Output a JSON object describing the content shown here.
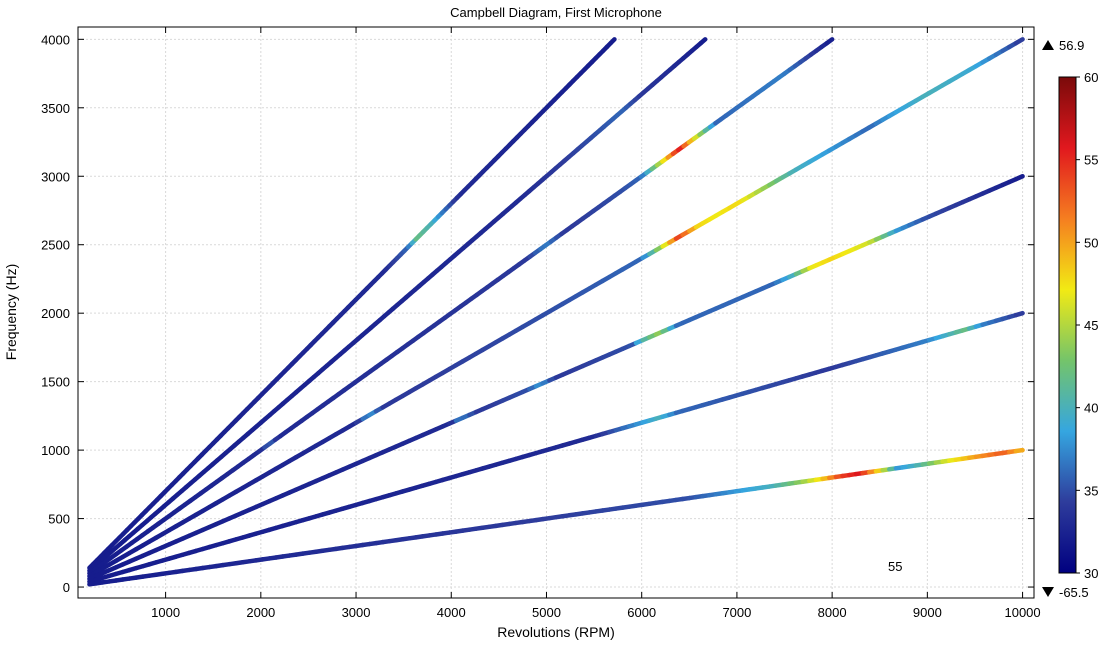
{
  "chart_data": {
    "type": "line",
    "title": "Campbell Diagram, First Microphone",
    "xlabel": "Revolutions (RPM)",
    "ylabel": "Frequency (Hz)",
    "xlim": [
      80,
      10120
    ],
    "ylim": [
      -80,
      4090
    ],
    "xticks": [
      1000,
      2000,
      3000,
      4000,
      5000,
      6000,
      7000,
      8000,
      9000,
      10000
    ],
    "yticks": [
      0,
      500,
      1000,
      1500,
      2000,
      2500,
      3000,
      3500,
      4000
    ],
    "grid": true,
    "color_scale": {
      "min": 30,
      "max": 60,
      "ticks": [
        30,
        35,
        40,
        45,
        50,
        55,
        60
      ],
      "data_max_label": "56.9",
      "data_min_label": "-65.5",
      "colormap": [
        "#000080",
        "#2e3c9c",
        "#35a6e0",
        "#74c46a",
        "#f2ea14",
        "#f57e20",
        "#e1181e",
        "#7a0a0a"
      ]
    },
    "annotation": "55",
    "series": [
      {
        "order": 42,
        "x": [
          200,
          5714
        ],
        "y": [
          140,
          4000
        ],
        "segments": [
          [
            200,
            32
          ],
          [
            3300,
            33
          ],
          [
            3550,
            36
          ],
          [
            3650,
            42
          ],
          [
            3800,
            40
          ],
          [
            3950,
            36
          ],
          [
            4100,
            33
          ],
          [
            5714,
            32
          ]
        ]
      },
      {
        "order": 36,
        "x": [
          200,
          6667
        ],
        "y": [
          120,
          4000
        ],
        "segments": [
          [
            200,
            32
          ],
          [
            4700,
            33
          ],
          [
            5500,
            35
          ],
          [
            5800,
            36
          ],
          [
            6000,
            34
          ],
          [
            6667,
            32
          ]
        ]
      },
      {
        "order": 30,
        "x": [
          200,
          8000
        ],
        "y": [
          100,
          4000
        ],
        "segments": [
          [
            200,
            32
          ],
          [
            2000,
            33
          ],
          [
            2100,
            36
          ],
          [
            2200,
            33
          ],
          [
            4800,
            34
          ],
          [
            5000,
            37
          ],
          [
            5200,
            34
          ],
          [
            5800,
            35
          ],
          [
            6000,
            36
          ],
          [
            6200,
            45
          ],
          [
            6400,
            56
          ],
          [
            6600,
            45
          ],
          [
            6800,
            36
          ],
          [
            7500,
            37
          ],
          [
            8000,
            32
          ]
        ]
      },
      {
        "order": 24,
        "x": [
          200,
          10000
        ],
        "y": [
          80,
          4000
        ],
        "segments": [
          [
            200,
            32
          ],
          [
            3000,
            33
          ],
          [
            3150,
            38
          ],
          [
            3300,
            34
          ],
          [
            5000,
            35
          ],
          [
            6000,
            36
          ],
          [
            6200,
            44
          ],
          [
            6400,
            54
          ],
          [
            6600,
            48
          ],
          [
            6800,
            47
          ],
          [
            7000,
            48
          ],
          [
            7300,
            44
          ],
          [
            7600,
            40
          ],
          [
            8000,
            38
          ],
          [
            8400,
            36
          ],
          [
            8600,
            38
          ],
          [
            9000,
            40
          ],
          [
            9500,
            39
          ],
          [
            10000,
            34
          ]
        ]
      },
      {
        "order": 18,
        "x": [
          200,
          10000
        ],
        "y": [
          60,
          3000
        ],
        "segments": [
          [
            200,
            32
          ],
          [
            4000,
            33
          ],
          [
            4100,
            37
          ],
          [
            4300,
            34
          ],
          [
            4800,
            35
          ],
          [
            4950,
            38
          ],
          [
            5100,
            34
          ],
          [
            5900,
            35
          ],
          [
            6000,
            40
          ],
          [
            6200,
            44
          ],
          [
            6400,
            36
          ],
          [
            7400,
            36
          ],
          [
            7600,
            40
          ],
          [
            7800,
            47
          ],
          [
            8000,
            48
          ],
          [
            8400,
            46
          ],
          [
            8700,
            38
          ],
          [
            9000,
            35
          ],
          [
            10000,
            32
          ]
        ]
      },
      {
        "order": 12,
        "x": [
          200,
          10000
        ],
        "y": [
          40,
          2000
        ],
        "segments": [
          [
            200,
            32
          ],
          [
            5500,
            33
          ],
          [
            5800,
            36
          ],
          [
            6200,
            40
          ],
          [
            6400,
            36
          ],
          [
            8000,
            34
          ],
          [
            9000,
            37
          ],
          [
            9400,
            42
          ],
          [
            9600,
            37
          ],
          [
            10000,
            34
          ]
        ]
      },
      {
        "order": 6,
        "x": [
          200,
          10000
        ],
        "y": [
          20,
          1000
        ],
        "segments": [
          [
            200,
            32
          ],
          [
            6500,
            35
          ],
          [
            7000,
            38
          ],
          [
            7400,
            40
          ],
          [
            7700,
            44
          ],
          [
            7900,
            48
          ],
          [
            8100,
            54
          ],
          [
            8300,
            56
          ],
          [
            8500,
            48
          ],
          [
            8700,
            38
          ],
          [
            8900,
            40
          ],
          [
            9200,
            46
          ],
          [
            9500,
            50
          ],
          [
            9800,
            53
          ],
          [
            10000,
            49
          ]
        ]
      }
    ]
  }
}
